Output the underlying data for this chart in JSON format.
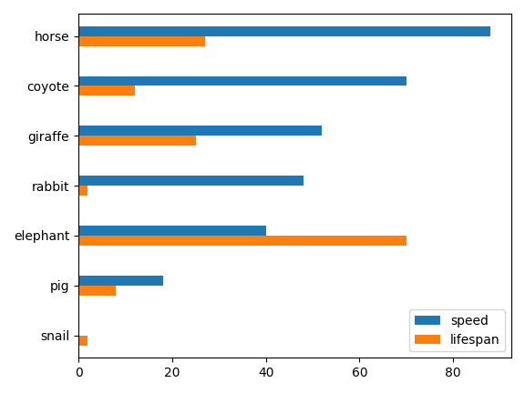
{
  "animals": [
    "horse",
    "coyote",
    "giraffe",
    "rabbit",
    "elephant",
    "pig",
    "snail"
  ],
  "speed": [
    88,
    70,
    52,
    48,
    40,
    18,
    0.05
  ],
  "lifespan": [
    27,
    12,
    25,
    2,
    70,
    8,
    2
  ],
  "speed_color": "#1f77b4",
  "lifespan_color": "#ff7f0e",
  "legend_labels": [
    "speed",
    "lifespan"
  ],
  "bar_width": 0.4,
  "figsize": [
    5.76,
    4.32
  ],
  "dpi": 100
}
